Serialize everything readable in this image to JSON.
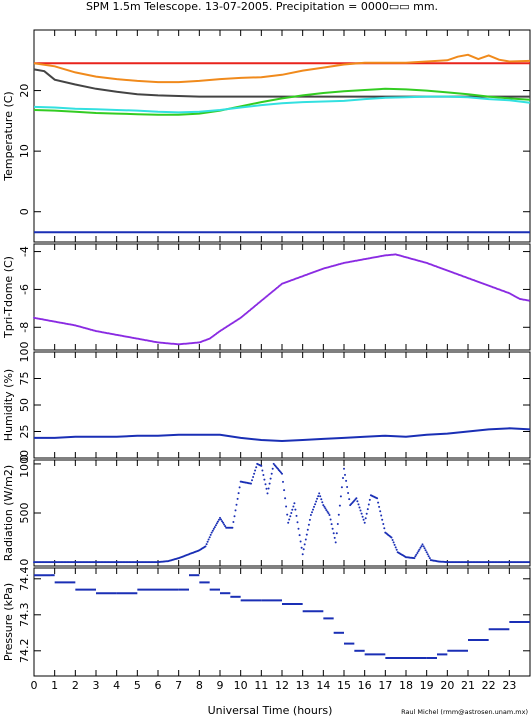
{
  "title": "SPM 1.5m Telescope. 13-07-2005. Precipitation = 0000▭▭ mm.",
  "footer_credit": "Raul Michel (rmm@astrosen.unam.mx)",
  "xlabel": "Universal Time (hours)",
  "colors": {
    "red": "#e8231c",
    "orange": "#f08a1c",
    "dark": "#444444",
    "green": "#33cc22",
    "cyan": "#33e0e0",
    "blue": "#1a2fb5",
    "purple": "#8a2be2"
  },
  "chart_data": [
    {
      "type": "line",
      "ylabel": "Temperature (C)",
      "xlim": [
        0,
        24
      ],
      "ylim": [
        -5,
        30
      ],
      "x_ticks": [
        "0",
        "1",
        "2",
        "3",
        "4",
        "5",
        "6",
        "7",
        "8",
        "9",
        "10",
        "11",
        "12",
        "13",
        "14",
        "15",
        "16",
        "17",
        "18",
        "19",
        "20",
        "21",
        "22",
        "23"
      ],
      "y_ticks": [
        0,
        10,
        20
      ],
      "series": [
        {
          "color": "red",
          "x": [
            0,
            24
          ],
          "y": [
            24.5,
            24.5
          ]
        },
        {
          "color": "orange",
          "x": [
            0,
            1,
            2,
            3,
            4,
            5,
            6,
            7,
            8,
            9,
            10,
            11,
            12,
            13,
            14,
            15,
            16,
            17,
            18,
            19,
            20,
            20.5,
            21,
            21.5,
            22,
            22.5,
            23,
            24
          ],
          "y": [
            24.5,
            24,
            23,
            22.3,
            21.9,
            21.6,
            21.4,
            21.4,
            21.6,
            21.9,
            22.1,
            22.2,
            22.6,
            23.3,
            23.8,
            24.3,
            24.6,
            24.6,
            24.6,
            24.8,
            25,
            25.6,
            25.9,
            25.2,
            25.8,
            25.1,
            24.8,
            24.9
          ]
        },
        {
          "color": "dark",
          "x": [
            0,
            0.5,
            1,
            2,
            3,
            4,
            5,
            6,
            7,
            8,
            9,
            10,
            11,
            12,
            13,
            14,
            16,
            18,
            20,
            22,
            24
          ],
          "y": [
            23.5,
            23.2,
            21.8,
            21,
            20.3,
            19.8,
            19.4,
            19.2,
            19.1,
            19,
            19,
            19,
            19,
            19,
            19,
            19,
            19,
            19,
            19,
            19,
            19
          ]
        },
        {
          "color": "green",
          "x": [
            0,
            1,
            2,
            3,
            4,
            5,
            6,
            7,
            8,
            9,
            10,
            11,
            12,
            13,
            14,
            15,
            16,
            17,
            18,
            19,
            20,
            21,
            22,
            23,
            24
          ],
          "y": [
            16.8,
            16.7,
            16.5,
            16.3,
            16.2,
            16.1,
            16,
            16,
            16.2,
            16.7,
            17.4,
            18.1,
            18.7,
            19.2,
            19.6,
            19.9,
            20.1,
            20.3,
            20.2,
            20,
            19.7,
            19.4,
            19,
            18.7,
            18.5
          ]
        },
        {
          "color": "cyan",
          "x": [
            0,
            1,
            2,
            3,
            4,
            5,
            6,
            7,
            8,
            9,
            10,
            11,
            12,
            13,
            14,
            15,
            16,
            17,
            18,
            19,
            20,
            21,
            22,
            23,
            24
          ],
          "y": [
            17.3,
            17.2,
            17,
            16.9,
            16.8,
            16.7,
            16.5,
            16.4,
            16.5,
            16.8,
            17.2,
            17.6,
            17.9,
            18.1,
            18.2,
            18.3,
            18.6,
            18.8,
            18.9,
            19,
            19,
            18.9,
            18.6,
            18.4,
            18
          ]
        },
        {
          "color": "blue",
          "x": [
            0,
            24
          ],
          "y": [
            -3.4,
            -3.4
          ]
        }
      ]
    },
    {
      "type": "scatter",
      "ylabel": "Tpri-Tdome (C)",
      "xlim": [
        0,
        24
      ],
      "ylim": [
        -9.2,
        -3.6
      ],
      "y_ticks": [
        -8,
        -6,
        -4
      ],
      "series": [
        {
          "color": "purple",
          "x": [
            0,
            1,
            2,
            3,
            4,
            5,
            6,
            7,
            8,
            8.5,
            9,
            10,
            11,
            12,
            13,
            14,
            15,
            16,
            17,
            17.5,
            18,
            19,
            20,
            21,
            22,
            23,
            23.5,
            24
          ],
          "y": [
            -7.5,
            -7.7,
            -7.9,
            -8.2,
            -8.4,
            -8.6,
            -8.8,
            -8.9,
            -8.8,
            -8.6,
            -8.2,
            -7.5,
            -6.6,
            -5.7,
            -5.3,
            -4.9,
            -4.6,
            -4.4,
            -4.2,
            -4.15,
            -4.3,
            -4.6,
            -5,
            -5.4,
            -5.8,
            -6.2,
            -6.5,
            -6.6
          ]
        }
      ]
    },
    {
      "type": "line",
      "ylabel": "Humidity (%)",
      "xlim": [
        0,
        24
      ],
      "ylim": [
        0,
        100
      ],
      "y_ticks": [
        0,
        25,
        50,
        75,
        100
      ],
      "series": [
        {
          "color": "blue",
          "x": [
            0,
            1,
            2,
            3,
            4,
            5,
            6,
            7,
            8,
            9,
            10,
            11,
            12,
            13,
            14,
            15,
            16,
            17,
            18,
            19,
            20,
            21,
            22,
            23,
            24
          ],
          "y": [
            19,
            19,
            20,
            20,
            20,
            21,
            21,
            22,
            22,
            22,
            19,
            17,
            16,
            17,
            18,
            19,
            20,
            21,
            20,
            22,
            23,
            25,
            27,
            28,
            27
          ]
        }
      ]
    },
    {
      "type": "scatter",
      "ylabel": "Radiation (W/m2)",
      "xlim": [
        0,
        24
      ],
      "ylim": [
        -40,
        1040
      ],
      "y_ticks": [
        0,
        500,
        1000
      ],
      "series": [
        {
          "color": "blue",
          "x": [
            0,
            6,
            6.5,
            7,
            7.5,
            8,
            8.3,
            8.6,
            9,
            9.3,
            9.6,
            10,
            10.5,
            10.8,
            11,
            11.3,
            11.6,
            12,
            12.3,
            12.6,
            13,
            13.4,
            13.8,
            14,
            14.3,
            14.6,
            15,
            15.3,
            15.6,
            16,
            16.3,
            16.6,
            17,
            17.3,
            17.6,
            18,
            18.4,
            18.8,
            19.2,
            19.6,
            20,
            24
          ],
          "y": [
            0,
            0,
            10,
            40,
            80,
            120,
            160,
            300,
            450,
            350,
            350,
            820,
            800,
            1000,
            980,
            700,
            1000,
            900,
            400,
            600,
            80,
            480,
            700,
            580,
            480,
            200,
            950,
            580,
            650,
            400,
            680,
            650,
            300,
            250,
            100,
            50,
            40,
            180,
            20,
            5,
            0,
            0
          ]
        }
      ]
    },
    {
      "type": "scatter",
      "ylabel": "Pressure (kPa)",
      "xlim": [
        0,
        24
      ],
      "ylim": [
        74.13,
        74.43
      ],
      "y_ticks": [
        74.2,
        74.3,
        74.4
      ],
      "series": [
        {
          "color": "blue",
          "x": [
            0,
            0.8,
            1,
            2,
            3,
            4,
            5,
            6,
            7,
            7.5,
            8,
            8.5,
            9,
            9.5,
            10,
            11,
            12,
            13,
            14,
            14.5,
            15,
            15.5,
            16,
            17,
            18,
            19,
            19.5,
            20,
            21,
            22,
            23,
            24
          ],
          "y": [
            74.41,
            74.41,
            74.39,
            74.37,
            74.36,
            74.36,
            74.37,
            74.37,
            74.37,
            74.41,
            74.39,
            74.37,
            74.36,
            74.35,
            74.34,
            74.34,
            74.33,
            74.31,
            74.29,
            74.25,
            74.22,
            74.2,
            74.19,
            74.18,
            74.18,
            74.18,
            74.19,
            74.2,
            74.23,
            74.26,
            74.28,
            74.28
          ]
        }
      ]
    }
  ]
}
